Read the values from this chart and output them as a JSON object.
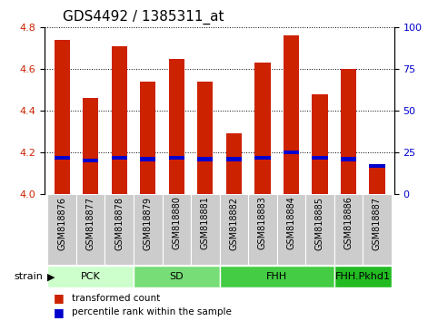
{
  "title": "GDS4492 / 1385311_at",
  "samples": [
    "GSM818876",
    "GSM818877",
    "GSM818878",
    "GSM818879",
    "GSM818880",
    "GSM818881",
    "GSM818882",
    "GSM818883",
    "GSM818884",
    "GSM818885",
    "GSM818886",
    "GSM818887"
  ],
  "transformed_counts": [
    4.74,
    4.46,
    4.71,
    4.54,
    4.65,
    4.54,
    4.29,
    4.63,
    4.76,
    4.48,
    4.6,
    4.13
  ],
  "percentile_ranks": [
    22,
    20,
    22,
    21,
    22,
    21,
    21,
    22,
    25,
    22,
    21,
    17
  ],
  "bar_color": "#cc2200",
  "blue_color": "#0000cc",
  "ylim_left": [
    4.0,
    4.8
  ],
  "ylim_right": [
    0,
    100
  ],
  "yticks_left": [
    4.0,
    4.2,
    4.4,
    4.6,
    4.8
  ],
  "yticks_right": [
    0,
    25,
    50,
    75,
    100
  ],
  "group_boundaries": [
    {
      "label": "PCK",
      "start": 0,
      "end": 2,
      "color": "#ccffcc"
    },
    {
      "label": "SD",
      "start": 3,
      "end": 5,
      "color": "#77dd77"
    },
    {
      "label": "FHH",
      "start": 6,
      "end": 9,
      "color": "#44cc44"
    },
    {
      "label": "FHH.Pkhd1",
      "start": 10,
      "end": 11,
      "color": "#22bb22"
    }
  ],
  "strain_label": "strain",
  "legend_red": "transformed count",
  "legend_blue": "percentile rank within the sample",
  "bar_width": 0.55,
  "tick_area_color": "#cccccc",
  "grid_color": "#000000",
  "title_fontsize": 11,
  "tick_fontsize": 8,
  "label_fontsize": 7
}
